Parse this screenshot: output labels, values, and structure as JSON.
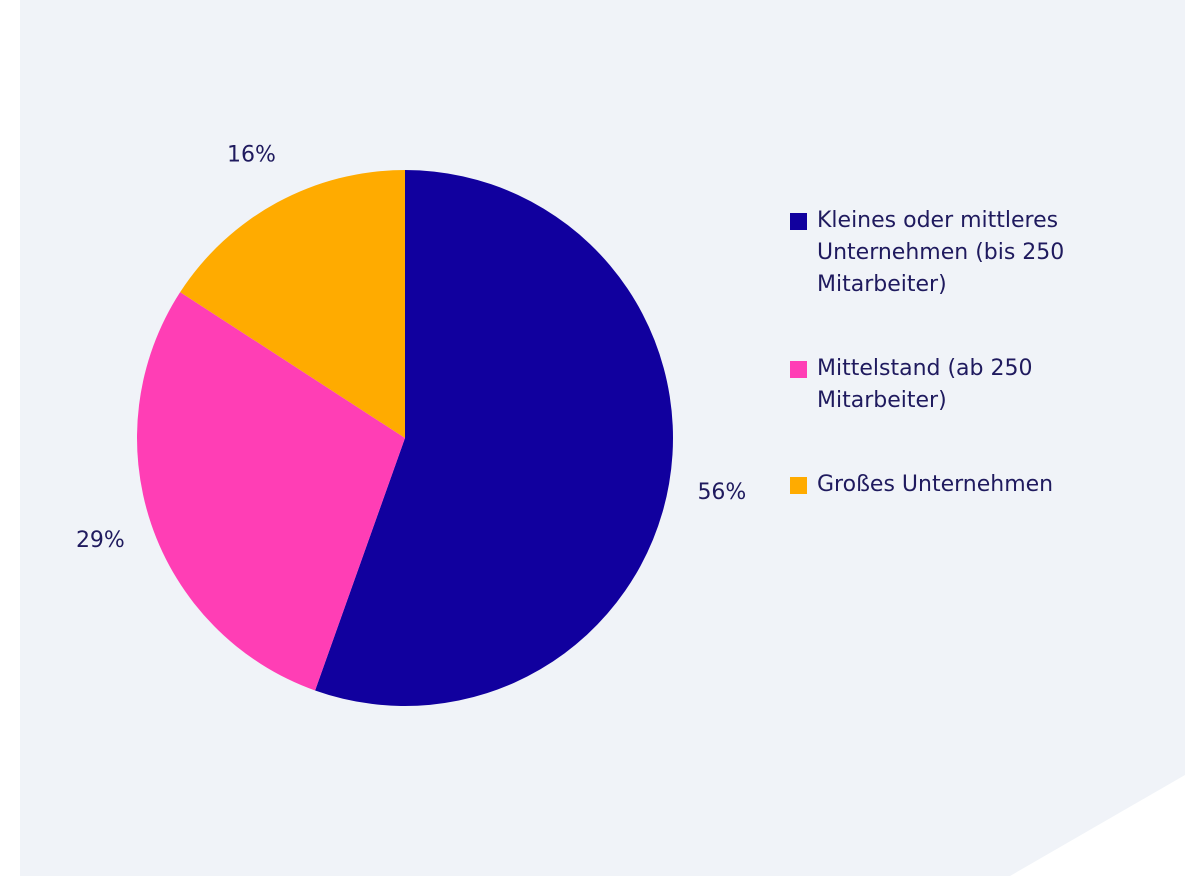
{
  "chart_data": {
    "type": "pie",
    "categories": [
      "Kleines oder mittleres Unternehmen (bis 250 Mitarbeiter)",
      "Mittelstand (ab 250 Mitarbeiter)",
      "Großes Unternehmen"
    ],
    "values": [
      56,
      29,
      16
    ],
    "value_labels": [
      "56%",
      "29%",
      "16%"
    ],
    "colors": [
      "#11009e",
      "#ff3eb5",
      "#ffab00"
    ],
    "legend": "right"
  }
}
